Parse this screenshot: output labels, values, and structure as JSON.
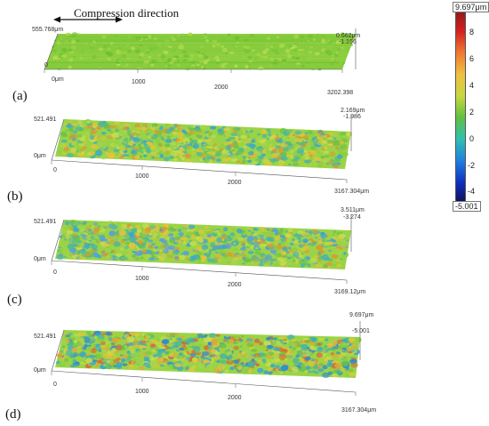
{
  "direction_label": "Compression direction",
  "colorbar": {
    "max_label": "9.697μm",
    "min_label": "-5.001",
    "ticks": [
      "8",
      "6",
      "4",
      "2",
      "0",
      "-2",
      "-4"
    ],
    "stops": [
      "#8b1a1a",
      "#d62020",
      "#f07a30",
      "#f0c040",
      "#c8d840",
      "#60c040",
      "#30c0b0",
      "#2080e0",
      "#1030c0",
      "#101050"
    ]
  },
  "panels": [
    {
      "id": "a",
      "label": "(a)",
      "y_top": "555.768μm",
      "y_zero": "0",
      "x_origin": "0μm",
      "x_ticks": [
        "1000",
        "2000"
      ],
      "x_end": "3202.398",
      "z_top": "0.662μm",
      "z_bottom": "-1.166",
      "palette": [
        "#7cc638",
        "#8fd040",
        "#a8d84a",
        "#6fbf34",
        "#b6dc52"
      ]
    },
    {
      "id": "b",
      "label": "(b)",
      "y_top": "521.491",
      "y_zero": "0μm",
      "x_origin": "0",
      "x_ticks": [
        "1000",
        "2000"
      ],
      "x_end": "3167.304μm",
      "z_top": "2.169μm",
      "z_bottom": "-1.986",
      "palette": [
        "#a6d64a",
        "#c9dc4c",
        "#e3c43a",
        "#6cc24a",
        "#4eb89a",
        "#3aa8c8",
        "#8fcf42",
        "#d89a34"
      ]
    },
    {
      "id": "c",
      "label": "(c)",
      "y_top": "521.491",
      "y_zero": "0μm",
      "x_origin": "0",
      "x_ticks": [
        "1000",
        "2000"
      ],
      "x_end": "3169.12μm",
      "z_top": "3.511μm",
      "z_bottom": "-3.274",
      "palette": [
        "#a6d64a",
        "#c9dc4c",
        "#e3c43a",
        "#6cc24a",
        "#4eb89a",
        "#3aa8c8",
        "#5aa0d8",
        "#8fcf42",
        "#d89a34"
      ]
    },
    {
      "id": "d",
      "label": "(d)",
      "y_top": "521.491",
      "y_zero": "0μm",
      "x_origin": "0",
      "x_ticks": [
        "1000",
        "2000"
      ],
      "x_end": "3167.304μm",
      "z_top": "9.697μm",
      "z_bottom": "-5.001",
      "palette": [
        "#a6d64a",
        "#c9dc4c",
        "#e3c43a",
        "#6cc24a",
        "#4eb89a",
        "#3aa8c8",
        "#d86a30",
        "#8fcf42",
        "#e0a838",
        "#2f8ad0"
      ]
    }
  ]
}
